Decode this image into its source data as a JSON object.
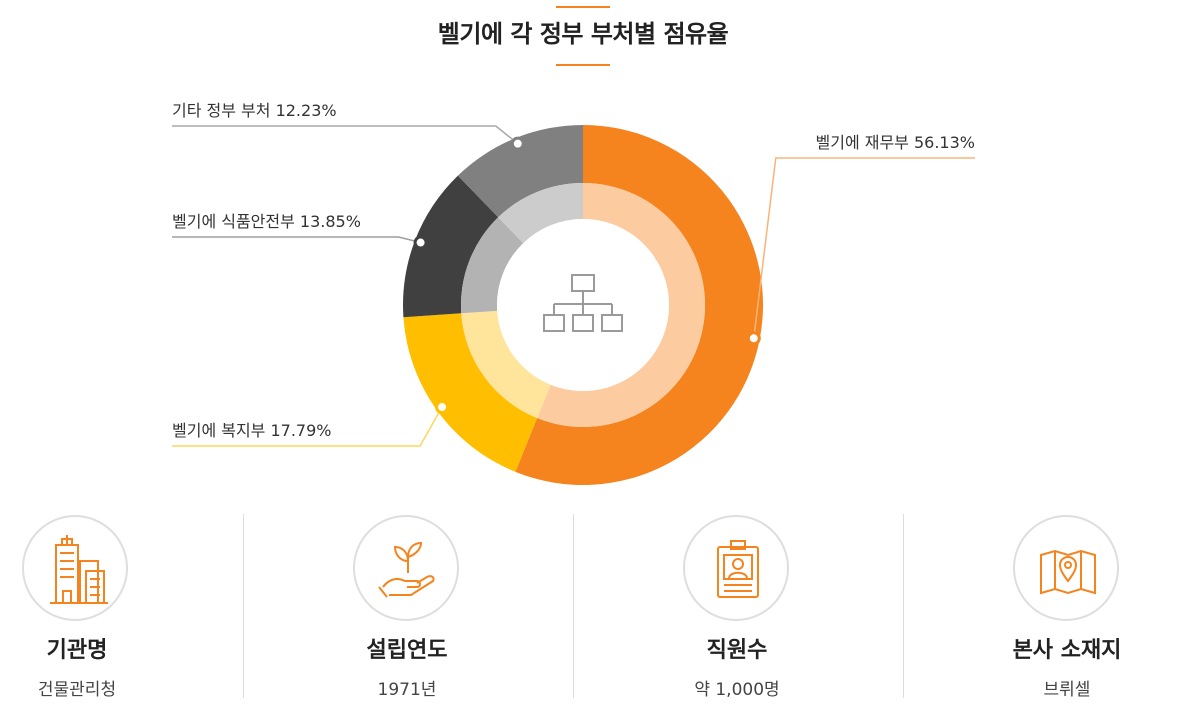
{
  "chart_data": {
    "type": "pie",
    "title": "벨기에 각 정부 부처별 점유율",
    "slices": [
      {
        "label": "벨기에 재무부 56.13%",
        "value": 56.13,
        "color": "#f5841f",
        "inner_color": "#fccba0"
      },
      {
        "label": "벨기에 복지부 17.79%",
        "value": 17.79,
        "color": "#ffbf00",
        "inner_color": "#ffe49b"
      },
      {
        "label": "벨기에 식품안전부 13.85%",
        "value": 13.85,
        "color": "#404040",
        "inner_color": "#b3b3b3"
      },
      {
        "label": "기타 정부 부처 12.23%",
        "value": 12.23,
        "color": "#808080",
        "inner_color": "#cccccc"
      }
    ]
  },
  "center_icon": "org-chart-icon",
  "info": [
    {
      "icon": "buildings-icon",
      "title": "기관명",
      "value": "건물관리청"
    },
    {
      "icon": "plant-hand-icon",
      "title": "설립연도",
      "value": "1971년"
    },
    {
      "icon": "id-card-icon",
      "title": "직원수",
      "value": "약 1,000명"
    },
    {
      "icon": "map-pin-icon",
      "title": "본사 소재지",
      "value": "브뤼셀"
    }
  ],
  "colors": {
    "accent": "#f5841f",
    "line_gray": "#bdbdbd"
  }
}
